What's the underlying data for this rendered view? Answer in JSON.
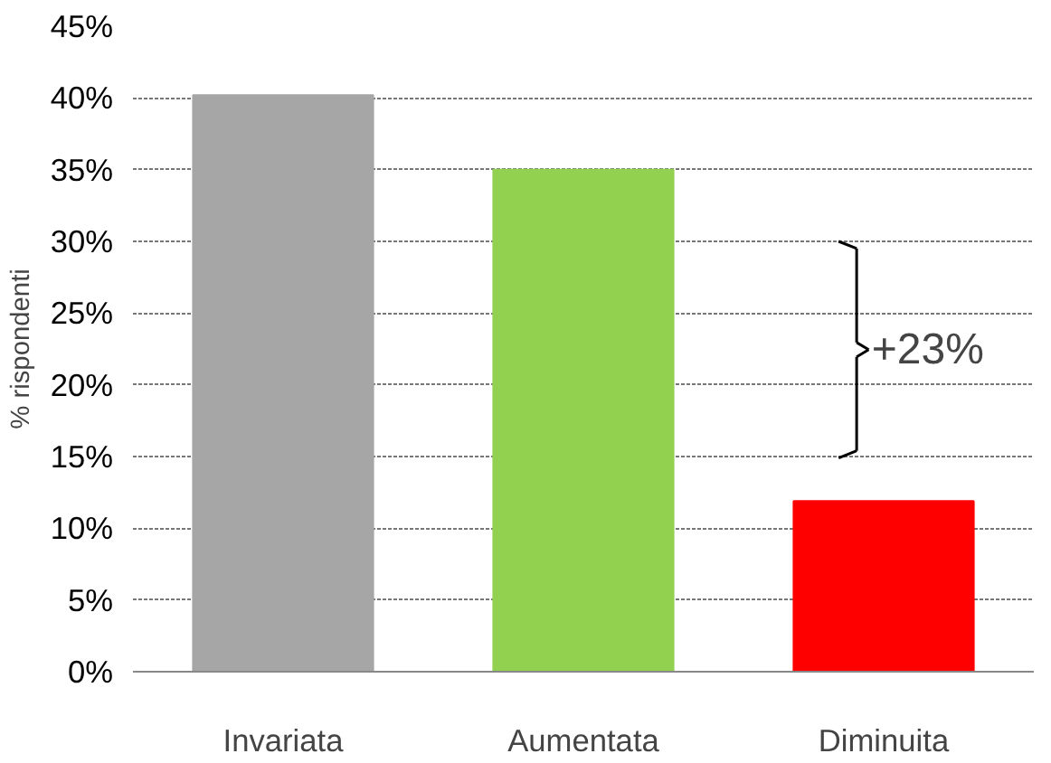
{
  "chart_data": {
    "type": "bar",
    "ylabel": "% rispondenti",
    "categories": [
      "Invariata",
      "Aumentata",
      "Diminuita"
    ],
    "values": [
      40.2,
      35,
      11.9
    ],
    "colors": [
      "#a6a6a6",
      "#92d050",
      "#ff0000"
    ],
    "ylim": [
      0,
      45
    ],
    "yticks": [
      {
        "value": 0,
        "label": "0%"
      },
      {
        "value": 5,
        "label": "5%"
      },
      {
        "value": 10,
        "label": "10%"
      },
      {
        "value": 15,
        "label": "15%"
      },
      {
        "value": 20,
        "label": "20%"
      },
      {
        "value": 25,
        "label": "25%"
      },
      {
        "value": 30,
        "label": "30%"
      },
      {
        "value": 35,
        "label": "35%"
      },
      {
        "value": 40,
        "label": "40%"
      },
      {
        "value": 45,
        "label": "45%"
      }
    ],
    "grid": "y",
    "annotations": [
      "+23%"
    ]
  }
}
